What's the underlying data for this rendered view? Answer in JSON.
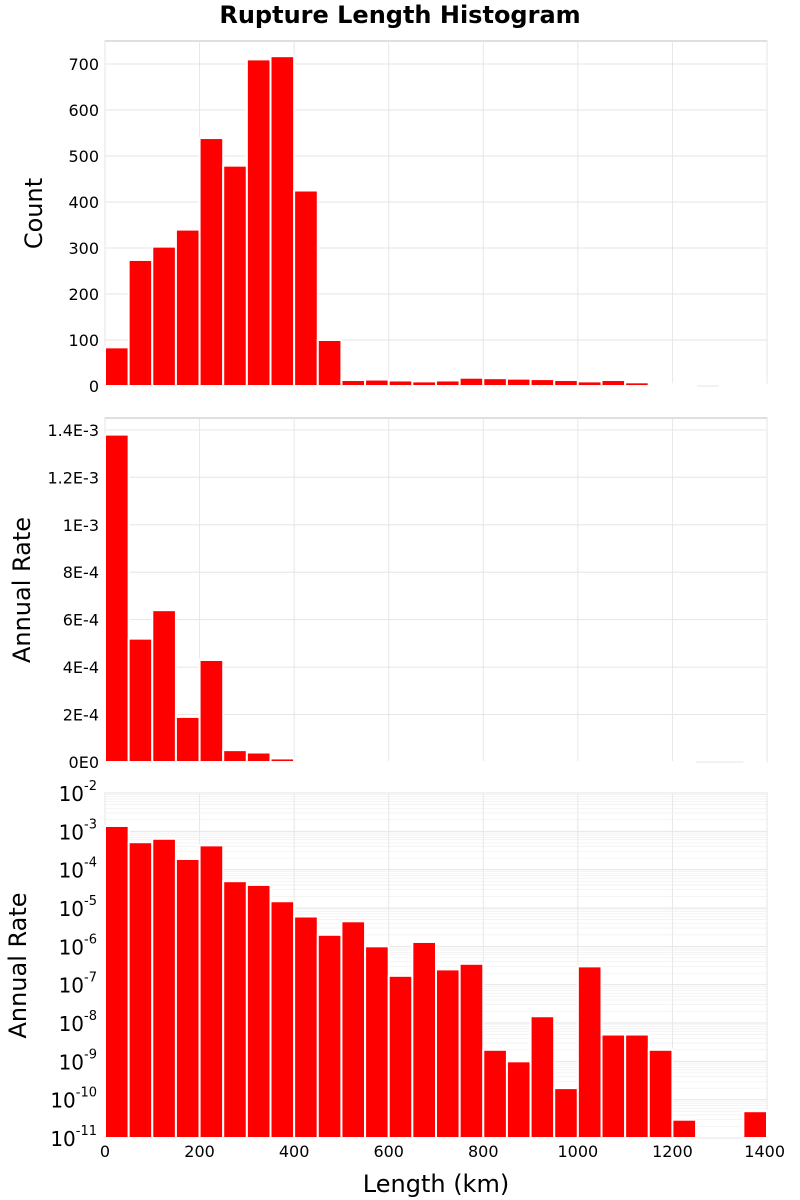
{
  "title": "Rupture Length Histogram",
  "chart_data": [
    {
      "type": "bar",
      "bin_width_km": 50,
      "x": [
        0,
        50,
        100,
        150,
        200,
        250,
        300,
        350,
        400,
        450,
        500,
        550,
        600,
        650,
        700,
        750,
        800,
        850,
        900,
        950,
        1000,
        1050,
        1100,
        1150,
        1200,
        1250,
        1300,
        1350
      ],
      "values": [
        84,
        274,
        303,
        340,
        539,
        479,
        710,
        717,
        425,
        100,
        13,
        14,
        12,
        10,
        12,
        18,
        17,
        16,
        15,
        13,
        10,
        13,
        8,
        4,
        1,
        0,
        3,
        3
      ],
      "ylabel": "Count",
      "yscale": "linear",
      "ylim": [
        0,
        750
      ],
      "yticks": [
        0,
        100,
        200,
        300,
        400,
        500,
        600,
        700
      ],
      "ytick_labels": [
        "0",
        "100",
        "200",
        "300",
        "400",
        "500",
        "600",
        "700"
      ],
      "xlim": [
        0,
        1400
      ],
      "grid": true
    },
    {
      "type": "bar",
      "bin_width_km": 50,
      "x": [
        0,
        50,
        100,
        150,
        200,
        250,
        300,
        350,
        400,
        450,
        500,
        550,
        600,
        650,
        700,
        750,
        800,
        850,
        900,
        950,
        1000,
        1050,
        1100,
        1150,
        1200,
        1250,
        1300,
        1350
      ],
      "values": [
        0.00138,
        0.00052,
        0.00064,
        0.00019,
        0.00043,
        5e-05,
        4e-05,
        1.5e-05,
        6e-06,
        2e-06,
        4.5e-06,
        1e-06,
        1.7e-07,
        1.3e-06,
        2.5e-07,
        3.5e-07,
        2e-09,
        1e-09,
        1.5e-08,
        2e-10,
        3e-07,
        5e-09,
        5e-09,
        2e-09,
        3e-11,
        0,
        0,
        5e-11
      ],
      "ylabel": "Annual Rate",
      "yscale": "linear",
      "ylim": [
        0,
        0.00145
      ],
      "yticks": [
        0,
        0.0002,
        0.0004,
        0.0006,
        0.0008,
        0.001,
        0.0012,
        0.0014
      ],
      "ytick_labels": [
        "0E0",
        "2E-4",
        "4E-4",
        "6E-4",
        "8E-4",
        "1E-3",
        "1.2E-3",
        "1.4E-3"
      ],
      "xlim": [
        0,
        1400
      ],
      "grid": true
    },
    {
      "type": "bar",
      "bin_width_km": 50,
      "x": [
        0,
        50,
        100,
        150,
        200,
        250,
        300,
        350,
        400,
        450,
        500,
        550,
        600,
        650,
        700,
        750,
        800,
        850,
        900,
        950,
        1000,
        1050,
        1100,
        1150,
        1200,
        1250,
        1300,
        1350
      ],
      "values": [
        0.00138,
        0.00052,
        0.00064,
        0.00019,
        0.00043,
        5e-05,
        4e-05,
        1.5e-05,
        6e-06,
        2e-06,
        4.5e-06,
        1e-06,
        1.7e-07,
        1.3e-06,
        2.5e-07,
        3.5e-07,
        2e-09,
        1e-09,
        1.5e-08,
        2e-10,
        3e-07,
        5e-09,
        5e-09,
        2e-09,
        3e-11,
        0,
        0,
        5e-11
      ],
      "ylabel": "Annual Rate",
      "yscale": "log",
      "ylim_exponents": [
        -11,
        -2
      ],
      "ytick_base": "10",
      "ytick_exponents": [
        "-2",
        "-3",
        "-4",
        "-5",
        "-6",
        "-7",
        "-8",
        "-9",
        "-10",
        "-11"
      ],
      "xlabel": "Length (km)",
      "xlim": [
        0,
        1400
      ],
      "xticks": [
        0,
        200,
        400,
        600,
        800,
        1000,
        1200,
        1400
      ],
      "xtick_labels": [
        "0",
        "200",
        "400",
        "600",
        "800",
        "1000",
        "1200",
        "1400"
      ],
      "grid": true
    }
  ],
  "colors": {
    "bar": "#ff0000",
    "grid": "#e6e6e6",
    "frame": "#bfbfbf"
  }
}
